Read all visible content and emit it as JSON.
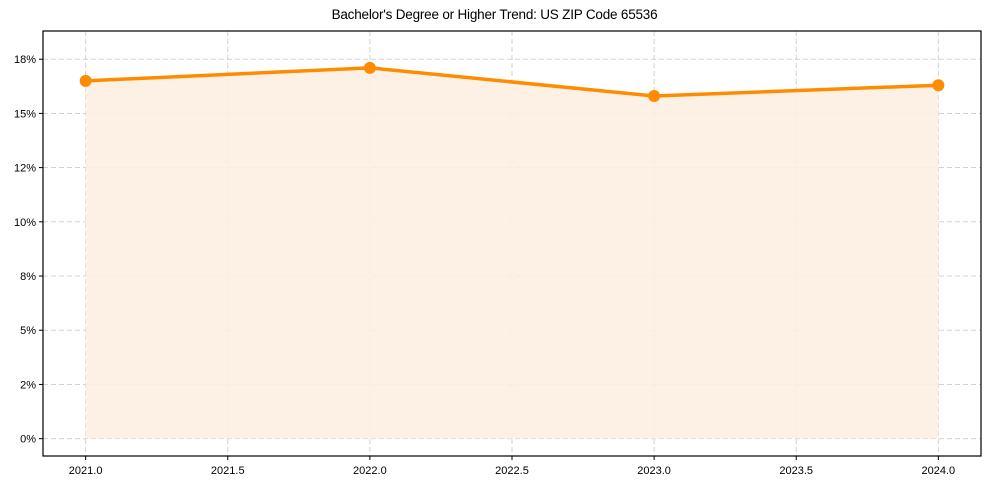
{
  "chart_data": {
    "type": "area",
    "title": "Bachelor's Degree or Higher Trend: US ZIP Code 65536",
    "xlabel": "",
    "ylabel": "",
    "x": [
      2021,
      2022,
      2023,
      2024
    ],
    "series": [
      {
        "name": "Bachelor's Degree or Higher",
        "values": [
          16.5,
          17.1,
          15.8,
          16.3
        ],
        "color": "#ff8c00",
        "fill": "#fdf0e3"
      }
    ],
    "xlim": [
      2020.85,
      2024.15
    ],
    "ylim": [
      -0.8,
      18.8
    ],
    "xticks": [
      2021.0,
      2021.5,
      2022.0,
      2022.5,
      2023.0,
      2023.5,
      2024.0
    ],
    "xtick_labels": [
      "2021.0",
      "2021.5",
      "2022.0",
      "2022.5",
      "2023.0",
      "2023.5",
      "2024.0"
    ],
    "yticks": [
      0,
      2.5,
      5,
      7.5,
      10,
      12.5,
      15,
      17.5
    ],
    "ytick_labels": [
      "0%",
      "2%",
      "5%",
      "8%",
      "10%",
      "12%",
      "15%",
      "18%"
    ],
    "grid": true,
    "legend": null
  }
}
